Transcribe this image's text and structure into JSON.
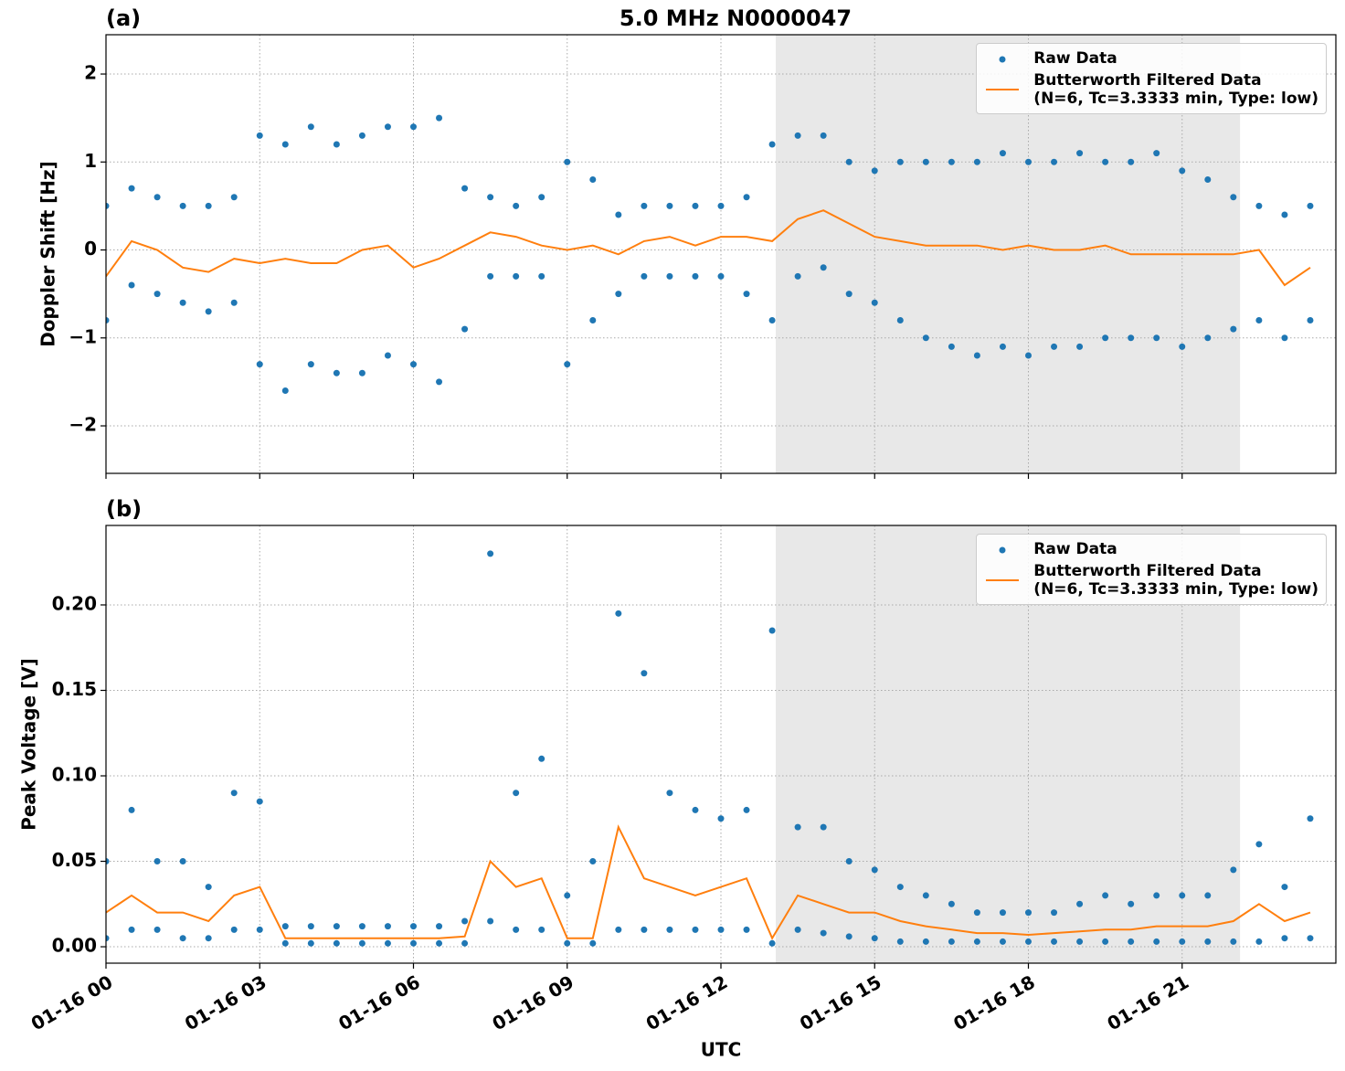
{
  "chart_data": [
    {
      "type": "scatter-line",
      "panel_label": "(a)",
      "title": "5.0 MHz N0000047",
      "ylabel": "Doppler Shift [Hz]",
      "xlim": [
        0,
        24
      ],
      "xticks": [
        0,
        3,
        6,
        9,
        12,
        15,
        18,
        21
      ],
      "ylim": [
        -2.54,
        2.447
      ],
      "yticks": [
        {
          "value": -2,
          "label": "−2"
        },
        {
          "value": -1,
          "label": "−1"
        },
        0,
        1,
        2
      ],
      "grid": true,
      "shaded_span": [
        13.07,
        22.13
      ],
      "shade_color": "#e8e8e8",
      "legend": "upper right",
      "series": [
        {
          "name": "Raw Data",
          "color": "#1f77b4",
          "x": [
            0,
            0.5,
            1,
            1.5,
            2,
            2.5,
            3,
            3.5,
            4,
            4.5,
            5,
            5.5,
            6,
            6.5,
            7,
            7.5,
            8,
            8.5,
            9,
            9.5,
            10,
            10.5,
            11,
            11.5,
            12,
            12.5,
            13,
            13.5,
            14,
            14.5,
            15,
            15.5,
            16,
            16.5,
            17,
            17.5,
            18,
            18.5,
            19,
            19.5,
            20,
            20.5,
            21,
            21.5,
            22,
            22.5,
            23,
            23.5,
            0,
            0.5,
            1,
            1.5,
            2,
            2.5,
            3,
            3.5,
            4,
            4.5,
            5,
            5.5,
            6,
            6.5,
            7,
            7.5,
            8,
            8.5,
            9,
            9.5,
            10,
            10.5,
            11,
            11.5,
            12,
            12.5,
            13,
            13.5,
            14,
            14.5,
            15,
            15.5,
            16,
            16.5,
            17,
            17.5,
            18,
            18.5,
            19,
            19.5,
            20,
            20.5,
            21,
            21.5,
            22,
            22.5,
            23,
            23.5
          ],
          "values": [
            0.5,
            0.7,
            0.6,
            0.5,
            0.5,
            0.6,
            1.3,
            1.2,
            1.4,
            1.2,
            1.3,
            1.4,
            1.4,
            1.5,
            0.7,
            0.6,
            0.5,
            0.6,
            1.0,
            0.8,
            0.4,
            0.5,
            0.5,
            0.5,
            0.5,
            0.6,
            1.2,
            1.3,
            1.3,
            1.0,
            0.9,
            1.0,
            1.0,
            1.0,
            1.0,
            1.1,
            1.0,
            1.0,
            1.1,
            1.0,
            1.0,
            1.1,
            0.9,
            0.8,
            0.6,
            0.5,
            0.4,
            0.5,
            -0.8,
            -0.4,
            -0.5,
            -0.6,
            -0.7,
            -0.6,
            -1.3,
            -1.6,
            -1.3,
            -1.4,
            -1.4,
            -1.2,
            -1.3,
            -1.5,
            -0.9,
            -0.3,
            -0.3,
            -0.3,
            -1.3,
            -0.8,
            -0.5,
            -0.3,
            -0.3,
            -0.3,
            -0.3,
            -0.5,
            -0.8,
            -0.3,
            -0.2,
            -0.5,
            -0.6,
            -0.8,
            -1.0,
            -1.1,
            -1.2,
            -1.1,
            -1.2,
            -1.1,
            -1.1,
            -1.0,
            -1.0,
            -1.0,
            -1.1,
            -1.0,
            -0.9,
            -0.8,
            -1.0,
            -0.8
          ]
        },
        {
          "name": "Butterworth Filtered Data\n(N=6, Tc=3.3333 min, Type: low)",
          "color": "#ff7f0e",
          "x": [
            0,
            0.5,
            1,
            1.5,
            2,
            2.5,
            3,
            3.5,
            4,
            4.5,
            5,
            5.5,
            6,
            6.5,
            7,
            7.5,
            8,
            8.5,
            9,
            9.5,
            10,
            10.5,
            11,
            11.5,
            12,
            12.5,
            13,
            13.5,
            14,
            14.5,
            15,
            15.5,
            16,
            16.5,
            17,
            17.5,
            18,
            18.5,
            19,
            19.5,
            20,
            20.5,
            21,
            21.5,
            22,
            22.5,
            23,
            23.5
          ],
          "values": [
            -0.3,
            0.1,
            0.0,
            -0.2,
            -0.25,
            -0.1,
            -0.15,
            -0.1,
            -0.15,
            -0.15,
            0.0,
            0.05,
            -0.2,
            -0.1,
            0.05,
            0.2,
            0.15,
            0.05,
            0.0,
            0.05,
            -0.05,
            0.1,
            0.15,
            0.05,
            0.15,
            0.15,
            0.1,
            0.35,
            0.45,
            0.3,
            0.15,
            0.1,
            0.05,
            0.05,
            0.05,
            0.0,
            0.05,
            0.0,
            0.0,
            0.05,
            -0.05,
            -0.05,
            -0.05,
            -0.05,
            -0.05,
            0.0,
            -0.4,
            -0.2
          ]
        }
      ]
    },
    {
      "type": "scatter-line",
      "panel_label": "(b)",
      "ylabel": "Peak Voltage [V]",
      "xlabel": "UTC",
      "xlim": [
        0,
        24
      ],
      "xticks": [
        {
          "value": 0,
          "label": "01-16 00"
        },
        {
          "value": 3,
          "label": "01-16 03"
        },
        {
          "value": 6,
          "label": "01-16 06"
        },
        {
          "value": 9,
          "label": "01-16 09"
        },
        {
          "value": 12,
          "label": "01-16 12"
        },
        {
          "value": 15,
          "label": "01-16 15"
        },
        {
          "value": 18,
          "label": "01-16 18"
        },
        {
          "value": 21,
          "label": "01-16 21"
        }
      ],
      "ylim": [
        -0.0096,
        0.2465
      ],
      "yticks": [
        {
          "value": 0,
          "label": "0.00"
        },
        0.05,
        {
          "value": 0.1,
          "label": "0.10"
        },
        0.15,
        {
          "value": 0.2,
          "label": "0.20"
        }
      ],
      "grid": true,
      "shaded_span": [
        13.07,
        22.13
      ],
      "shade_color": "#e8e8e8",
      "legend": "upper right",
      "series": [
        {
          "name": "Raw Data",
          "color": "#1f77b4",
          "x": [
            0,
            0.5,
            1,
            1.5,
            2,
            2.5,
            3,
            3.5,
            4,
            4.5,
            5,
            5.5,
            6,
            6.5,
            7,
            7.5,
            8,
            8.5,
            9,
            9.5,
            10,
            10.5,
            11,
            11.5,
            12,
            12.5,
            13,
            13.5,
            14,
            14.5,
            15,
            15.5,
            16,
            16.5,
            17,
            17.5,
            18,
            18.5,
            19,
            19.5,
            20,
            20.5,
            21,
            21.5,
            22,
            22.5,
            23,
            23.5,
            0,
            0.5,
            1,
            1.5,
            2,
            2.5,
            3,
            3.5,
            4,
            4.5,
            5,
            5.5,
            6,
            6.5,
            7,
            7.5,
            8,
            8.5,
            9,
            9.5,
            10,
            10.5,
            11,
            11.5,
            12,
            12.5,
            13,
            13.5,
            14,
            14.5,
            15,
            15.5,
            16,
            16.5,
            17,
            17.5,
            18,
            18.5,
            19,
            19.5,
            20,
            20.5,
            21,
            21.5,
            22,
            22.5,
            23,
            23.5
          ],
          "values": [
            0.05,
            0.08,
            0.05,
            0.05,
            0.035,
            0.09,
            0.085,
            0.012,
            0.012,
            0.012,
            0.012,
            0.012,
            0.012,
            0.012,
            0.015,
            0.23,
            0.09,
            0.11,
            0.03,
            0.05,
            0.195,
            0.16,
            0.09,
            0.08,
            0.075,
            0.08,
            0.185,
            0.07,
            0.07,
            0.05,
            0.045,
            0.035,
            0.03,
            0.025,
            0.02,
            0.02,
            0.02,
            0.02,
            0.025,
            0.03,
            0.025,
            0.03,
            0.03,
            0.03,
            0.045,
            0.06,
            0.035,
            0.075,
            0.005,
            0.01,
            0.01,
            0.005,
            0.005,
            0.01,
            0.01,
            0.002,
            0.002,
            0.002,
            0.002,
            0.002,
            0.002,
            0.002,
            0.002,
            0.015,
            0.01,
            0.01,
            0.002,
            0.002,
            0.01,
            0.01,
            0.01,
            0.01,
            0.01,
            0.01,
            0.002,
            0.01,
            0.008,
            0.006,
            0.005,
            0.003,
            0.003,
            0.003,
            0.003,
            0.003,
            0.003,
            0.003,
            0.003,
            0.003,
            0.003,
            0.003,
            0.003,
            0.003,
            0.003,
            0.003,
            0.005,
            0.005
          ]
        },
        {
          "name": "Butterworth Filtered Data\n(N=6, Tc=3.3333 min, Type: low)",
          "color": "#ff7f0e",
          "x": [
            0,
            0.5,
            1,
            1.5,
            2,
            2.5,
            3,
            3.5,
            4,
            4.5,
            5,
            5.5,
            6,
            6.5,
            7,
            7.5,
            8,
            8.5,
            9,
            9.5,
            10,
            10.5,
            11,
            11.5,
            12,
            12.5,
            13,
            13.5,
            14,
            14.5,
            15,
            15.5,
            16,
            16.5,
            17,
            17.5,
            18,
            18.5,
            19,
            19.5,
            20,
            20.5,
            21,
            21.5,
            22,
            22.5,
            23,
            23.5
          ],
          "values": [
            0.02,
            0.03,
            0.02,
            0.02,
            0.015,
            0.03,
            0.035,
            0.005,
            0.005,
            0.005,
            0.005,
            0.005,
            0.005,
            0.005,
            0.006,
            0.05,
            0.035,
            0.04,
            0.005,
            0.005,
            0.07,
            0.04,
            0.035,
            0.03,
            0.035,
            0.04,
            0.005,
            0.03,
            0.025,
            0.02,
            0.02,
            0.015,
            0.012,
            0.01,
            0.008,
            0.008,
            0.007,
            0.008,
            0.009,
            0.01,
            0.01,
            0.012,
            0.012,
            0.012,
            0.015,
            0.025,
            0.015,
            0.02
          ]
        }
      ]
    }
  ]
}
